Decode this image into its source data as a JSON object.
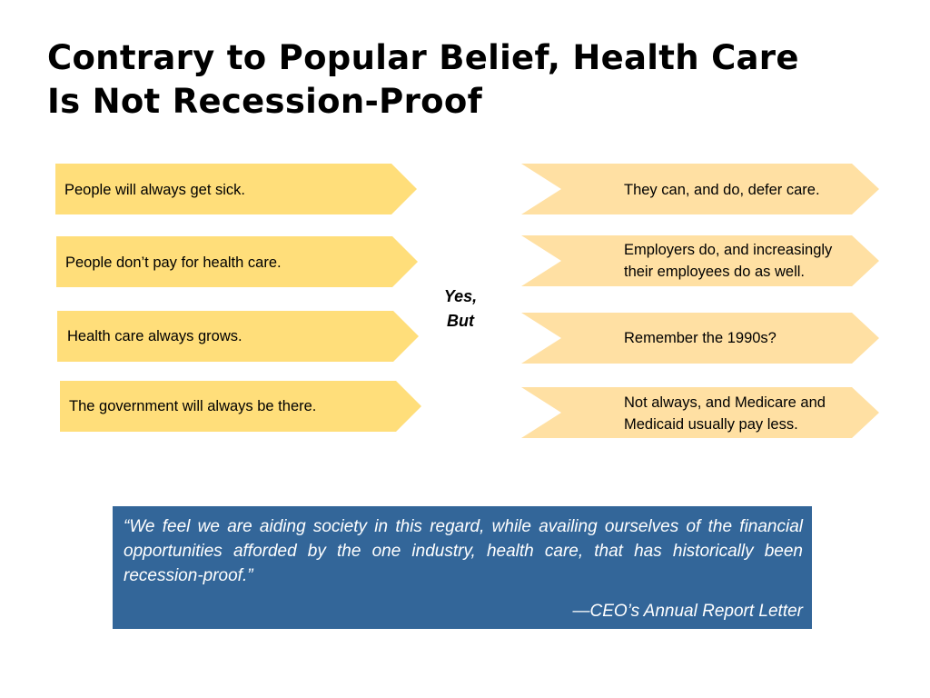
{
  "title": {
    "line1": "Contrary to Popular Belief, Health Care",
    "line2": "Is Not Recession-Proof"
  },
  "beliefs": [
    "People will always get sick.",
    "People don’t pay for health care.",
    "Health care always grows.",
    "The government will always be there."
  ],
  "divider": {
    "line1": "Yes,",
    "line2": "But"
  },
  "responses": [
    {
      "line1": "They can, and do, defer care.",
      "line2": ""
    },
    {
      "line1": "Employers do, and increasingly",
      "line2": "their employees do as well."
    },
    {
      "line1": "Remember the 1990s?",
      "line2": ""
    },
    {
      "line1": "Not always, and Medicare and",
      "line2": "Medicaid usually pay less."
    }
  ],
  "quote": {
    "text": "“We feel we are aiding society in this regard, while availing ourselves of the financial opportunities afforded by the one industry, health care, that has historically been recession-proof.”",
    "attribution": "—CEO’s Annual Report Letter"
  },
  "colors": {
    "belief_fill": "#FFDE7A",
    "response_fill": "#FFE0A3",
    "quote_bg": "#336699"
  }
}
